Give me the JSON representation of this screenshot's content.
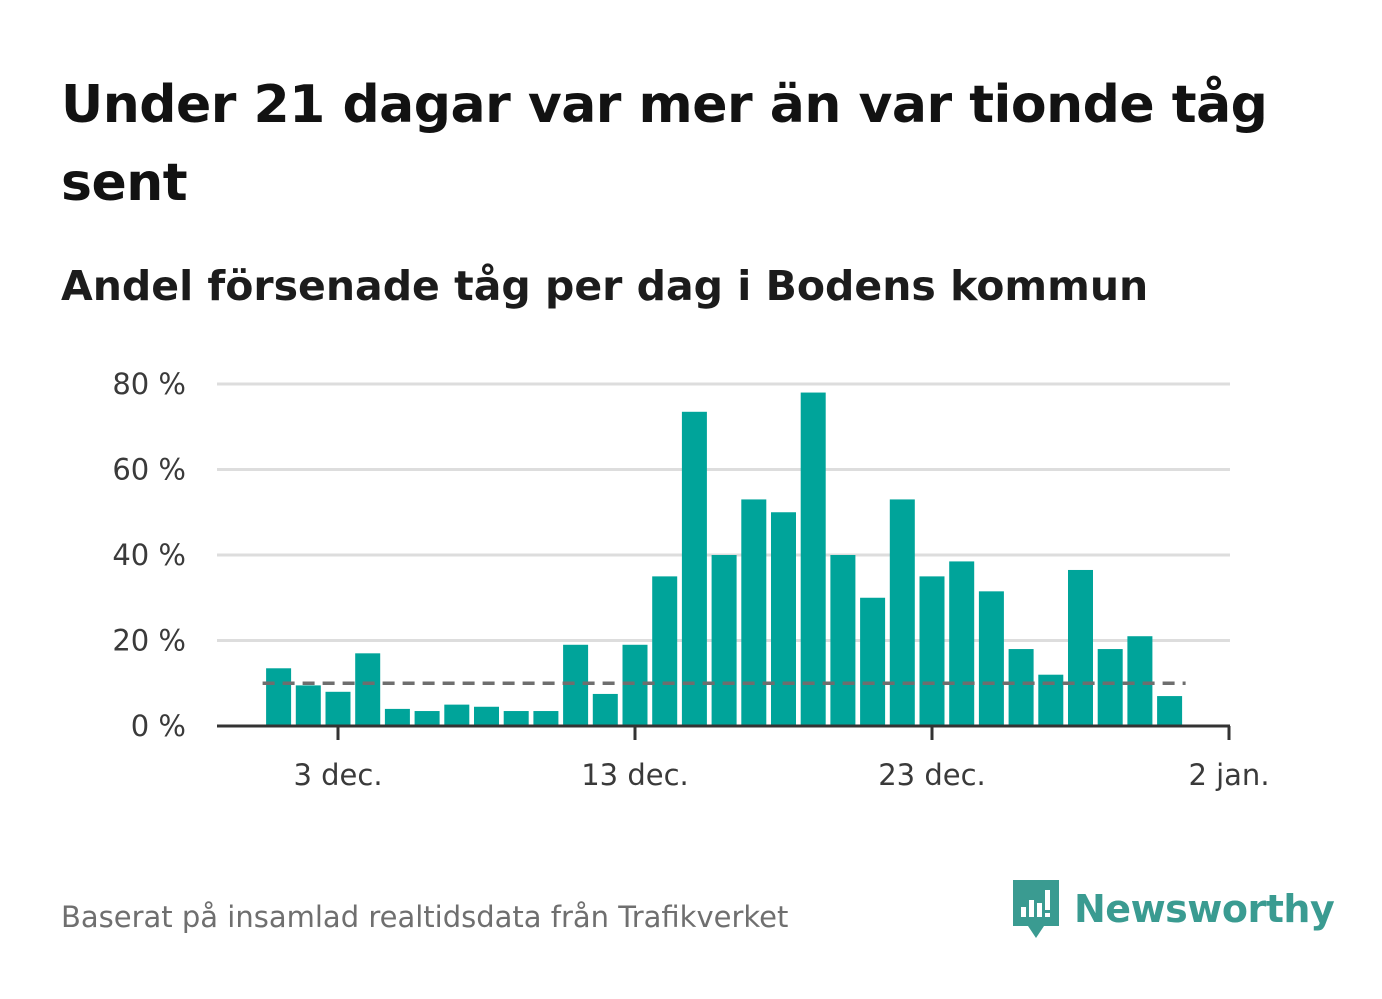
{
  "title": "Under 21 dagar var mer än var tionde tåg sent",
  "subtitle": "Andel försenade tåg per dag i Bodens kommun",
  "source": "Baserat på insamlad realtidsdata från Trafikverket",
  "brand": {
    "name": "Newsworthy",
    "color": "#3a9b91",
    "icon": "newsworthy-logo-icon"
  },
  "colors": {
    "bar": "#00a49a",
    "reference_line": "#6e6e6e",
    "grid": "#dddddd",
    "axis": "#333333"
  },
  "chart_data": {
    "type": "bar",
    "x_unit": "day",
    "start_date": "1 dec.",
    "values": [
      13.5,
      9.5,
      8,
      17,
      4,
      3.5,
      5,
      4.5,
      3.5,
      3.5,
      19,
      7.5,
      19,
      35,
      73.5,
      40,
      53,
      50,
      78,
      40,
      30,
      53,
      35,
      38.5,
      31.5,
      18,
      12,
      36.5,
      18,
      21,
      7
    ],
    "reference_line": {
      "value": 10,
      "style": "dashed"
    },
    "ylim": [
      0,
      80
    ],
    "y_ticks": [
      0,
      20,
      40,
      60,
      80
    ],
    "y_tick_labels": [
      "0 %",
      "20 %",
      "40 %",
      "60 %",
      "80 %"
    ],
    "x_ticks": [
      {
        "day_index": 2,
        "label": "3 dec."
      },
      {
        "day_index": 12,
        "label": "13 dec."
      },
      {
        "day_index": 22,
        "label": "23 dec."
      },
      {
        "day_index": 32,
        "label": "2 jan."
      }
    ],
    "grid": true,
    "xlabel": "",
    "ylabel": ""
  }
}
